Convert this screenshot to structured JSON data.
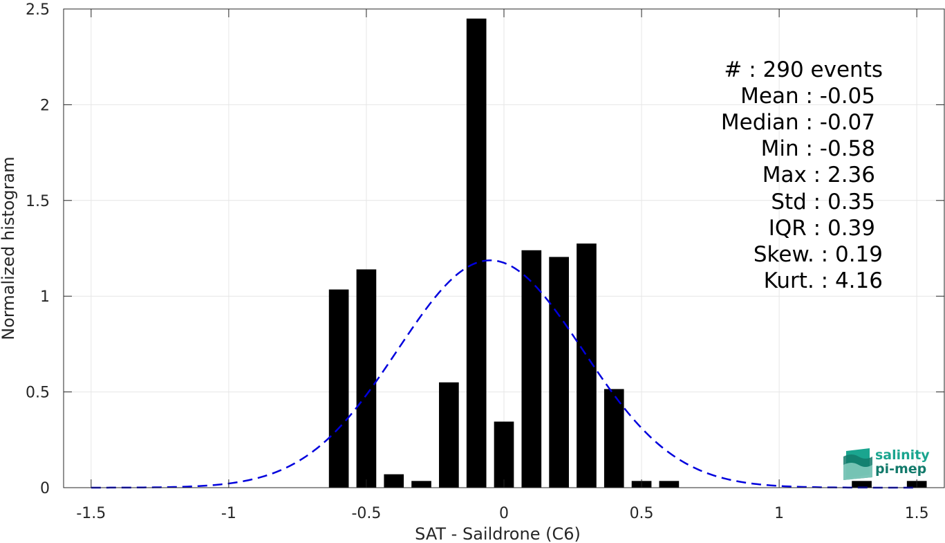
{
  "chart_data": {
    "type": "bar",
    "xlabel": "SAT - Saildrone (C6)",
    "ylabel": "Normalized histogram",
    "xlim": [
      -1.6,
      1.6
    ],
    "ylim": [
      0,
      2.5
    ],
    "xticks": [
      -1.5,
      -1,
      -0.5,
      0,
      0.5,
      1,
      1.5
    ],
    "xtick_labels": [
      "-1.5",
      "-1",
      "-0.5",
      "0",
      "0.5",
      "1",
      "1.5"
    ],
    "yticks": [
      0,
      0.5,
      1,
      1.5,
      2,
      2.5
    ],
    "ytick_labels": [
      "0",
      "0.5",
      "1",
      "1.5",
      "2",
      "2.5"
    ],
    "grid": true,
    "bin_width": 0.1,
    "bars": [
      {
        "x": -0.6,
        "value": 1.035
      },
      {
        "x": -0.5,
        "value": 1.14
      },
      {
        "x": -0.4,
        "value": 0.07
      },
      {
        "x": -0.3,
        "value": 0.035
      },
      {
        "x": -0.2,
        "value": 0.55
      },
      {
        "x": -0.1,
        "value": 2.45
      },
      {
        "x": 0.0,
        "value": 0.345
      },
      {
        "x": 0.1,
        "value": 1.24
      },
      {
        "x": 0.2,
        "value": 1.205
      },
      {
        "x": 0.3,
        "value": 1.275
      },
      {
        "x": 0.4,
        "value": 0.515
      },
      {
        "x": 0.5,
        "value": 0.035
      },
      {
        "x": 0.6,
        "value": 0.035
      },
      {
        "x": 1.3,
        "value": 0.035
      },
      {
        "x": 1.5,
        "value": 0.035
      }
    ],
    "fit_curve": {
      "style": "dashed",
      "color": "#0000dd",
      "mean": -0.05,
      "std": 0.336,
      "x_range": [
        -1.5,
        1.5
      ]
    },
    "annotations": [
      {
        "name": "count",
        "text": "#  : 290 events"
      },
      {
        "name": "mean",
        "text": "Mean : -0.05"
      },
      {
        "name": "median",
        "text": "Median : -0.07"
      },
      {
        "name": "min",
        "text": "Min : -0.58"
      },
      {
        "name": "max",
        "text": "Max : 2.36"
      },
      {
        "name": "std",
        "text": "Std : 0.35"
      },
      {
        "name": "iqr",
        "text": "IQR : 0.39"
      },
      {
        "name": "skew",
        "text": "Skew. : 0.19"
      },
      {
        "name": "kurt",
        "text": "Kurt. : 4.16"
      }
    ]
  },
  "logo": {
    "line1": "salinity",
    "line2": "pi-mep",
    "colors": [
      "#1aa58f",
      "#137a6b",
      "#8fd3c6"
    ]
  }
}
